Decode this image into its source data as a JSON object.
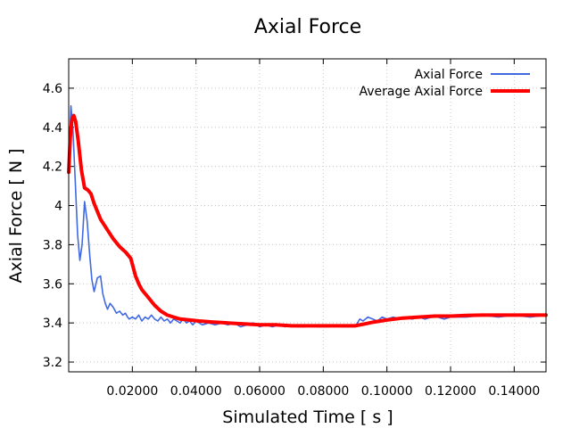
{
  "chart_data": {
    "type": "line",
    "title": "Axial Force",
    "xlabel": "Simulated Time [ s ]",
    "ylabel": "Axial Force [ N ]",
    "xlim": [
      0,
      0.15
    ],
    "ylim": [
      3.15,
      4.75
    ],
    "grid": true,
    "legend_position": "top-right",
    "x_ticks": [
      0.02,
      0.04,
      0.06,
      0.08,
      0.1,
      0.12,
      0.14
    ],
    "x_tick_labels": [
      "0.02000",
      "0.04000",
      "0.06000",
      "0.08000",
      "0.10000",
      "0.12000",
      "0.14000"
    ],
    "y_ticks": [
      3.2,
      3.4,
      3.6,
      3.8,
      4.0,
      4.2,
      4.4,
      4.6
    ],
    "y_tick_labels": [
      "3.2",
      "3.4",
      "3.6",
      "3.8",
      "4",
      "4.2",
      "4.4",
      "4.6"
    ],
    "series": [
      {
        "name": "Axial Force",
        "color": "#4169e1",
        "x": [
          0,
          0.0007,
          0.0013,
          0.002,
          0.0028,
          0.0035,
          0.0042,
          0.005,
          0.0058,
          0.0066,
          0.0073,
          0.008,
          0.009,
          0.01,
          0.0107,
          0.0115,
          0.0122,
          0.013,
          0.014,
          0.015,
          0.016,
          0.017,
          0.0178,
          0.0185,
          0.019,
          0.02,
          0.021,
          0.022,
          0.023,
          0.024,
          0.025,
          0.026,
          0.027,
          0.028,
          0.029,
          0.03,
          0.031,
          0.032,
          0.033,
          0.034,
          0.035,
          0.036,
          0.037,
          0.038,
          0.039,
          0.04,
          0.042,
          0.044,
          0.046,
          0.048,
          0.05,
          0.052,
          0.054,
          0.056,
          0.058,
          0.06,
          0.062,
          0.064,
          0.066,
          0.068,
          0.07,
          0.072,
          0.074,
          0.076,
          0.078,
          0.08,
          0.082,
          0.084,
          0.086,
          0.088,
          0.09,
          0.0915,
          0.0925,
          0.094,
          0.0955,
          0.097,
          0.0985,
          0.1,
          0.102,
          0.104,
          0.106,
          0.108,
          0.11,
          0.112,
          0.114,
          0.116,
          0.118,
          0.12,
          0.125,
          0.13,
          0.135,
          0.14,
          0.145,
          0.15
        ],
        "y": [
          4.2,
          4.51,
          4.4,
          4.15,
          3.85,
          3.72,
          3.8,
          4.02,
          3.92,
          3.75,
          3.62,
          3.56,
          3.63,
          3.64,
          3.55,
          3.5,
          3.47,
          3.5,
          3.48,
          3.45,
          3.46,
          3.44,
          3.45,
          3.43,
          3.42,
          3.43,
          3.42,
          3.44,
          3.41,
          3.43,
          3.42,
          3.44,
          3.42,
          3.41,
          3.43,
          3.41,
          3.42,
          3.4,
          3.42,
          3.41,
          3.4,
          3.42,
          3.4,
          3.41,
          3.39,
          3.41,
          3.39,
          3.4,
          3.39,
          3.4,
          3.39,
          3.4,
          3.38,
          3.39,
          3.4,
          3.38,
          3.39,
          3.38,
          3.39,
          3.38,
          3.39,
          3.38,
          3.38,
          3.39,
          3.38,
          3.38,
          3.38,
          3.39,
          3.38,
          3.38,
          3.38,
          3.42,
          3.41,
          3.43,
          3.42,
          3.41,
          3.43,
          3.42,
          3.43,
          3.42,
          3.43,
          3.42,
          3.43,
          3.42,
          3.43,
          3.43,
          3.42,
          3.43,
          3.43,
          3.44,
          3.43,
          3.44,
          3.43,
          3.44
        ]
      },
      {
        "name": "Average Axial Force",
        "color": "#ff0000",
        "x": [
          0,
          0.0005,
          0.001,
          0.0016,
          0.0022,
          0.003,
          0.004,
          0.005,
          0.006,
          0.007,
          0.008,
          0.01,
          0.012,
          0.014,
          0.016,
          0.018,
          0.0195,
          0.021,
          0.022,
          0.023,
          0.025,
          0.027,
          0.029,
          0.031,
          0.033,
          0.035,
          0.038,
          0.041,
          0.045,
          0.05,
          0.055,
          0.06,
          0.065,
          0.07,
          0.075,
          0.08,
          0.085,
          0.09,
          0.093,
          0.096,
          0.1,
          0.105,
          0.11,
          0.115,
          0.12,
          0.125,
          0.13,
          0.135,
          0.14,
          0.145,
          0.15
        ],
        "y": [
          4.17,
          4.35,
          4.44,
          4.46,
          4.43,
          4.33,
          4.18,
          4.09,
          4.08,
          4.06,
          4.01,
          3.93,
          3.88,
          3.83,
          3.79,
          3.76,
          3.73,
          3.64,
          3.6,
          3.57,
          3.53,
          3.49,
          3.46,
          3.44,
          3.43,
          3.42,
          3.415,
          3.41,
          3.405,
          3.4,
          3.395,
          3.39,
          3.39,
          3.385,
          3.385,
          3.385,
          3.385,
          3.385,
          3.395,
          3.405,
          3.415,
          3.425,
          3.43,
          3.435,
          3.435,
          3.438,
          3.44,
          3.44,
          3.44,
          3.44,
          3.44
        ]
      }
    ]
  }
}
